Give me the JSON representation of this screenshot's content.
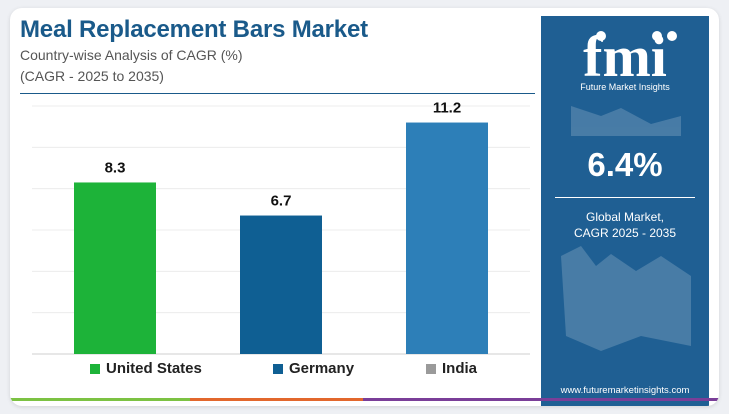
{
  "header": {
    "title": "Meal Replacement Bars Market",
    "subtitle": "Country-wise Analysis of CAGR (%)",
    "subtitle2": "(CAGR - 2025 to 2035)"
  },
  "chart_data": {
    "type": "bar",
    "categories": [
      "United States",
      "Germany",
      "India"
    ],
    "values": [
      8.3,
      6.7,
      11.2
    ],
    "value_labels": [
      "8.3",
      "6.7",
      "11.2"
    ],
    "colors": [
      "#1db339",
      "#0f5f93",
      "#2d7fb8"
    ],
    "legend_colors": [
      "#1db339",
      "#0f5f93",
      "#9a9a9a"
    ],
    "ylim": [
      0,
      12
    ],
    "grid": true,
    "legend_position": "bottom"
  },
  "sidebar": {
    "logo_text": "fmi",
    "logo_tagline": "Future Market Insights",
    "big_value": "6.4%",
    "label_line1": "Global Market,",
    "label_line2": "CAGR 2025 - 2035",
    "url": "www.futuremarketinsights.com",
    "bg_color": "#1f5f93"
  },
  "accent_bar_colors": [
    "#7cc243",
    "#e2672c",
    "#7a3e98"
  ]
}
